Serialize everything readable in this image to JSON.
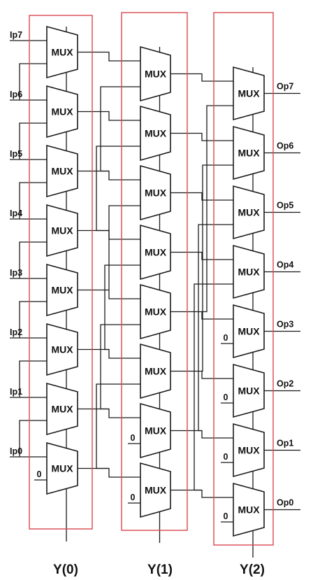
{
  "mux_label": "MUX",
  "zero_label": "0",
  "inputs": [
    "Ip7",
    "Ip6",
    "Ip5",
    "Ip4",
    "Ip3",
    "Ip2",
    "Ip1",
    "Ip0"
  ],
  "outputs": [
    "Op7",
    "Op6",
    "Op5",
    "Op4",
    "Op3",
    "Op2",
    "Op1",
    "Op0"
  ],
  "selects": [
    "Y(0)",
    "Y(1)",
    "Y(2)"
  ],
  "colors": {
    "stage_border": "#d9484e",
    "line": "#1a1a1a",
    "text": "#111111"
  }
}
